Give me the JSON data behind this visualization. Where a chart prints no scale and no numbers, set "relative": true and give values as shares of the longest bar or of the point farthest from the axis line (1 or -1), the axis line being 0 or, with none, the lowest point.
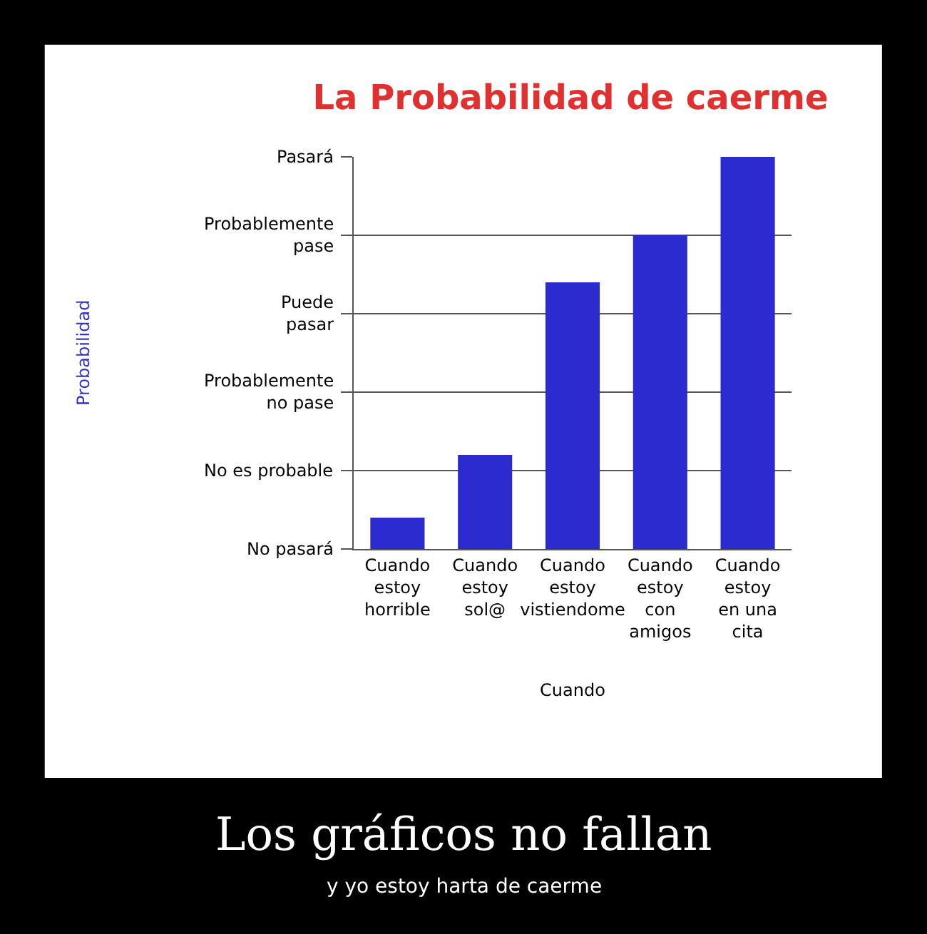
{
  "chart_data": {
    "type": "bar",
    "title": "La Probabilidad de caerme",
    "xlabel": "Cuando",
    "categories": [
      "Cuando\nestoy\nhorrible",
      "Cuando\nestoy\nsol@",
      "Cuando\nestoy\nvistiendome",
      "Cuando\nestoy\ncon\namigos",
      "Cuando\nestoy\nen una\ncita"
    ],
    "values": [
      0.08,
      0.24,
      0.68,
      0.8,
      1.0
    ],
    "color": "#2b2bd0",
    "relative": true,
    "grid": "y",
    "annotations": [
      "No pasará",
      "No es probable",
      "Probablemente\nno pase",
      "Puede\npasar",
      "Probablemente\npase",
      "Pasará",
      "Probabilidad",
      "Los gráficos no fallan",
      "y yo estoy harta de caerme"
    ]
  }
}
